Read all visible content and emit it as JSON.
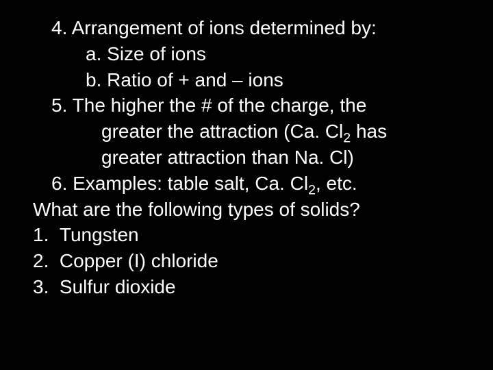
{
  "background_color": "#000000",
  "text_color": "#ffffff",
  "font_family": "Arial",
  "font_size_pt": 21,
  "item4": {
    "num": "4.",
    "title": "Arrangement of ions determined by:",
    "a_label": "a.",
    "a_text": "Size of ions",
    "b_label": "b.",
    "b_text": "Ratio of + and – ions"
  },
  "item5": {
    "num": "5.",
    "line1": "The higher the # of the charge, the",
    "line2_pre": "greater the attraction (Ca. Cl",
    "line2_sub": "2",
    "line2_post": "  has",
    "line3": "greater attraction than Na. Cl)"
  },
  "item6": {
    "num": "6.",
    "text_pre": "Examples: table salt, Ca. Cl",
    "text_sub": "2",
    "text_post": ", etc."
  },
  "question": "What are the following types of solids?",
  "answers": {
    "a1_num": "1.",
    "a1_text": "Tungsten",
    "a2_num": "2.",
    "a2_text": "Copper (I) chloride",
    "a3_num": "3.",
    "a3_text": "Sulfur dioxide"
  }
}
